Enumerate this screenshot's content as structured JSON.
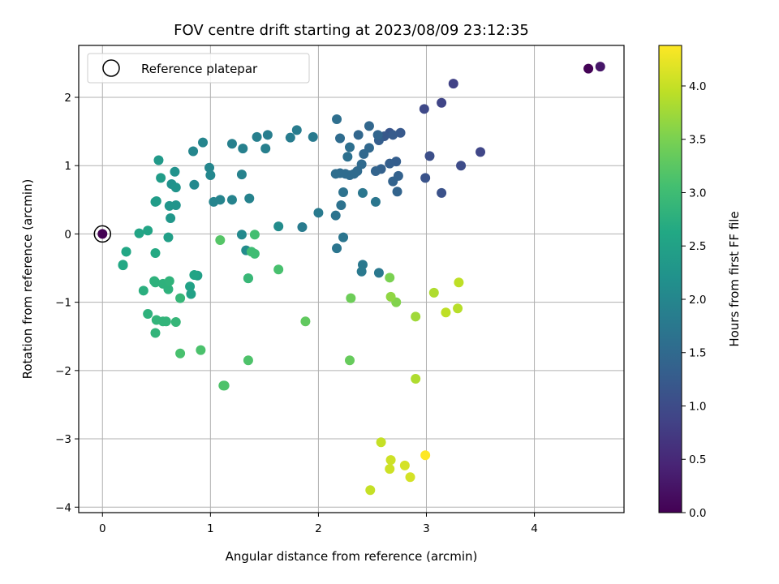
{
  "chart_data": {
    "type": "scatter",
    "title": "FOV centre drift starting at 2023/08/09 23:12:35",
    "xlabel": "Angular distance from reference (arcmin)",
    "ylabel": "Rotation from reference (arcmin)",
    "xlim": [
      -0.22,
      4.83
    ],
    "ylim": [
      -4.08,
      2.76
    ],
    "xticks": [
      0,
      1,
      2,
      3,
      4
    ],
    "xtick_labels": [
      "0",
      "1",
      "2",
      "3",
      "4"
    ],
    "yticks": [
      -4,
      -3,
      -2,
      -1,
      0,
      1,
      2
    ],
    "ytick_labels": [
      "−4",
      "−3",
      "−2",
      "−1",
      "0",
      "1",
      "2"
    ],
    "grid": true,
    "legend": {
      "placement": "upper-left",
      "entries": [
        {
          "label": "Reference platepar",
          "marker": "open-circle"
        }
      ]
    },
    "reference_point": {
      "x": 0,
      "y": 0
    },
    "colorbar": {
      "label": "Hours from first FF file",
      "colormap": "viridis",
      "range": [
        0.0,
        4.38
      ],
      "ticks": [
        0.0,
        0.5,
        1.0,
        1.5,
        2.0,
        2.5,
        3.0,
        3.5,
        4.0
      ],
      "tick_labels": [
        "0.0",
        "0.5",
        "1.0",
        "1.5",
        "2.0",
        "2.5",
        "3.0",
        "3.5",
        "4.0"
      ]
    },
    "series": [
      {
        "columns": [
          "x",
          "y",
          "hours"
        ],
        "points": [
          [
            0.0,
            0.0,
            0.0
          ],
          [
            4.5,
            2.42,
            0.02
          ],
          [
            4.61,
            2.45,
            0.28
          ],
          [
            3.25,
            2.2,
            0.85
          ],
          [
            3.14,
            1.92,
            0.9
          ],
          [
            2.98,
            1.83,
            0.95
          ],
          [
            3.5,
            1.2,
            0.92
          ],
          [
            3.32,
            1.0,
            1.0
          ],
          [
            3.03,
            1.14,
            1.05
          ],
          [
            3.14,
            0.6,
            1.1
          ],
          [
            2.99,
            0.82,
            1.12
          ],
          [
            2.66,
            1.48,
            1.15
          ],
          [
            2.61,
            1.43,
            1.2
          ],
          [
            2.76,
            1.48,
            1.22
          ],
          [
            2.69,
            1.45,
            1.25
          ],
          [
            2.56,
            1.37,
            1.3
          ],
          [
            2.72,
            1.06,
            1.3
          ],
          [
            2.66,
            1.03,
            1.32
          ],
          [
            2.58,
            0.95,
            1.35
          ],
          [
            2.74,
            0.85,
            1.36
          ],
          [
            2.69,
            0.77,
            1.38
          ],
          [
            2.73,
            0.62,
            1.4
          ],
          [
            2.53,
            0.92,
            1.4
          ],
          [
            2.55,
            1.45,
            1.42
          ],
          [
            2.47,
            1.58,
            1.45
          ],
          [
            2.37,
            1.45,
            1.45
          ],
          [
            2.47,
            1.26,
            1.47
          ],
          [
            2.42,
            1.17,
            1.48
          ],
          [
            2.4,
            1.02,
            1.5
          ],
          [
            2.36,
            0.92,
            1.5
          ],
          [
            2.33,
            0.88,
            1.52
          ],
          [
            2.29,
            0.86,
            1.53
          ],
          [
            2.25,
            0.88,
            1.55
          ],
          [
            2.2,
            0.89,
            1.55
          ],
          [
            2.16,
            0.88,
            1.57
          ],
          [
            2.2,
            1.4,
            1.55
          ],
          [
            2.17,
            1.68,
            1.6
          ],
          [
            2.29,
            1.27,
            1.6
          ],
          [
            2.27,
            1.13,
            1.62
          ],
          [
            2.23,
            0.61,
            1.65
          ],
          [
            2.21,
            0.42,
            1.65
          ],
          [
            2.16,
            0.27,
            1.67
          ],
          [
            2.17,
            -0.21,
            1.7
          ],
          [
            2.23,
            -0.05,
            1.7
          ],
          [
            2.41,
            0.6,
            1.72
          ],
          [
            2.53,
            0.47,
            1.72
          ],
          [
            2.56,
            -0.57,
            1.75
          ],
          [
            2.41,
            -0.45,
            1.75
          ],
          [
            2.4,
            -0.55,
            1.77
          ],
          [
            2.0,
            0.31,
            1.78
          ],
          [
            1.85,
            0.1,
            1.8
          ],
          [
            1.95,
            1.42,
            1.78
          ],
          [
            1.8,
            1.52,
            1.82
          ],
          [
            1.74,
            1.41,
            1.83
          ],
          [
            1.53,
            1.45,
            1.85
          ],
          [
            1.51,
            1.25,
            1.88
          ],
          [
            1.43,
            1.42,
            1.88
          ],
          [
            1.3,
            1.25,
            1.9
          ],
          [
            1.2,
            1.32,
            1.9
          ],
          [
            1.29,
            0.87,
            1.92
          ],
          [
            1.36,
            0.52,
            1.93
          ],
          [
            1.2,
            0.5,
            1.95
          ],
          [
            1.09,
            0.5,
            1.97
          ],
          [
            1.03,
            0.47,
            1.97
          ],
          [
            0.93,
            1.34,
            1.98
          ],
          [
            0.84,
            1.21,
            2.0
          ],
          [
            0.99,
            0.97,
            2.0
          ],
          [
            1.0,
            0.86,
            2.02
          ],
          [
            0.85,
            0.72,
            2.05
          ],
          [
            1.29,
            -0.01,
            2.05
          ],
          [
            1.33,
            -0.24,
            2.1
          ],
          [
            1.63,
            0.11,
            2.1
          ],
          [
            0.67,
            0.91,
            2.2
          ],
          [
            0.64,
            0.73,
            2.2
          ],
          [
            0.68,
            0.68,
            2.25
          ],
          [
            0.68,
            0.42,
            2.25
          ],
          [
            0.62,
            0.41,
            2.27
          ],
          [
            0.63,
            0.23,
            2.3
          ],
          [
            0.52,
            1.08,
            2.35
          ],
          [
            0.54,
            0.82,
            2.4
          ],
          [
            0.5,
            0.48,
            2.4
          ],
          [
            0.49,
            0.47,
            2.4
          ],
          [
            0.61,
            -0.05,
            2.45
          ],
          [
            0.88,
            -0.61,
            2.45
          ],
          [
            0.81,
            -0.77,
            2.5
          ],
          [
            0.82,
            -0.88,
            2.5
          ],
          [
            0.85,
            -0.6,
            2.55
          ],
          [
            0.42,
            0.05,
            2.55
          ],
          [
            0.34,
            0.01,
            2.55
          ],
          [
            0.22,
            -0.26,
            2.6
          ],
          [
            0.22,
            -0.26,
            2.6
          ],
          [
            0.19,
            -0.45,
            2.62
          ],
          [
            0.19,
            -0.46,
            2.62
          ],
          [
            0.49,
            -0.28,
            2.65
          ],
          [
            0.38,
            -0.83,
            2.75
          ],
          [
            0.48,
            -0.69,
            2.8
          ],
          [
            0.49,
            -0.71,
            2.8
          ],
          [
            0.56,
            -0.73,
            2.8
          ],
          [
            0.61,
            -0.81,
            2.8
          ],
          [
            0.62,
            -0.69,
            2.82
          ],
          [
            0.42,
            -1.17,
            2.8
          ],
          [
            0.5,
            -1.26,
            2.85
          ],
          [
            0.56,
            -1.28,
            2.85
          ],
          [
            0.59,
            -1.28,
            2.85
          ],
          [
            0.49,
            -1.45,
            2.85
          ],
          [
            0.68,
            -1.29,
            2.88
          ],
          [
            0.72,
            -0.94,
            2.9
          ],
          [
            1.35,
            -0.65,
            2.9
          ],
          [
            1.35,
            -0.65,
            2.92
          ],
          [
            1.41,
            -0.29,
            3.0
          ],
          [
            1.38,
            -0.26,
            3.0
          ],
          [
            1.41,
            -0.01,
            3.05
          ],
          [
            1.63,
            -0.52,
            3.1
          ],
          [
            0.72,
            -1.75,
            3.1
          ],
          [
            0.91,
            -1.7,
            3.12
          ],
          [
            1.13,
            -2.22,
            3.15
          ],
          [
            1.12,
            -2.22,
            3.15
          ],
          [
            1.35,
            -1.85,
            3.15
          ],
          [
            1.09,
            -0.09,
            3.2
          ],
          [
            1.88,
            -1.28,
            3.3
          ],
          [
            2.29,
            -1.85,
            3.35
          ],
          [
            2.3,
            -0.94,
            3.4
          ],
          [
            2.66,
            -0.64,
            3.5
          ],
          [
            2.72,
            -1.0,
            3.55
          ],
          [
            2.67,
            -0.92,
            3.65
          ],
          [
            2.9,
            -1.21,
            3.75
          ],
          [
            2.9,
            -2.12,
            3.85
          ],
          [
            3.07,
            -0.86,
            3.85
          ],
          [
            3.29,
            -1.09,
            3.9
          ],
          [
            3.18,
            -1.15,
            3.95
          ],
          [
            3.3,
            -0.71,
            3.95
          ],
          [
            2.48,
            -3.75,
            4.0
          ],
          [
            2.58,
            -3.05,
            4.0
          ],
          [
            2.67,
            -3.31,
            4.05
          ],
          [
            2.66,
            -3.44,
            4.05
          ],
          [
            2.8,
            -3.39,
            4.1
          ],
          [
            2.85,
            -3.56,
            4.1
          ],
          [
            2.99,
            -3.24,
            4.38
          ]
        ]
      }
    ]
  }
}
